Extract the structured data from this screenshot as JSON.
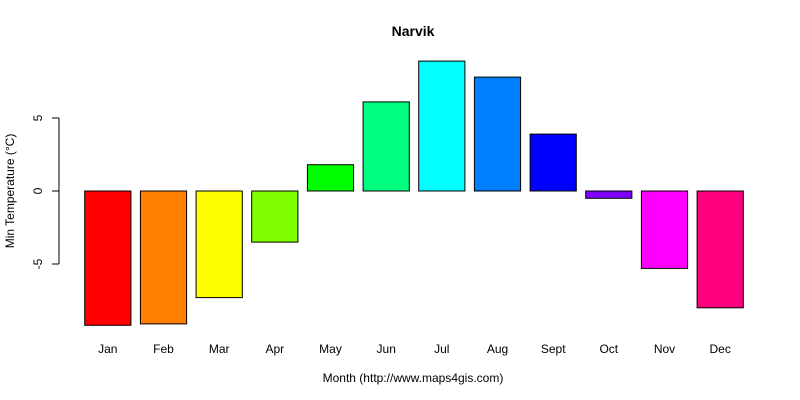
{
  "chart_data": {
    "type": "bar",
    "title": "Narvik",
    "xlabel": "Month (http://www.maps4gis.com)",
    "ylabel": "Min Temperature (°C)",
    "categories": [
      "Jan",
      "Feb",
      "Mar",
      "Apr",
      "May",
      "Jun",
      "Jul",
      "Aug",
      "Sept",
      "Oct",
      "Nov",
      "Dec"
    ],
    "values": [
      -9.2,
      -9.1,
      -7.3,
      -3.5,
      1.8,
      6.1,
      8.9,
      7.8,
      3.9,
      -0.5,
      -5.3,
      -8.0
    ],
    "colors": [
      "#FF0000",
      "#FF8000",
      "#FFFF00",
      "#80FF00",
      "#00FF00",
      "#00FF80",
      "#00FFFF",
      "#0080FF",
      "#0000FF",
      "#8000FF",
      "#FF00FF",
      "#FF0080"
    ],
    "yticks": [
      -5,
      0,
      5
    ],
    "ytick_labels": [
      "-5",
      "0",
      "5"
    ],
    "ylim": [
      -9.8,
      9.5
    ],
    "grid": false,
    "legend": "none"
  }
}
